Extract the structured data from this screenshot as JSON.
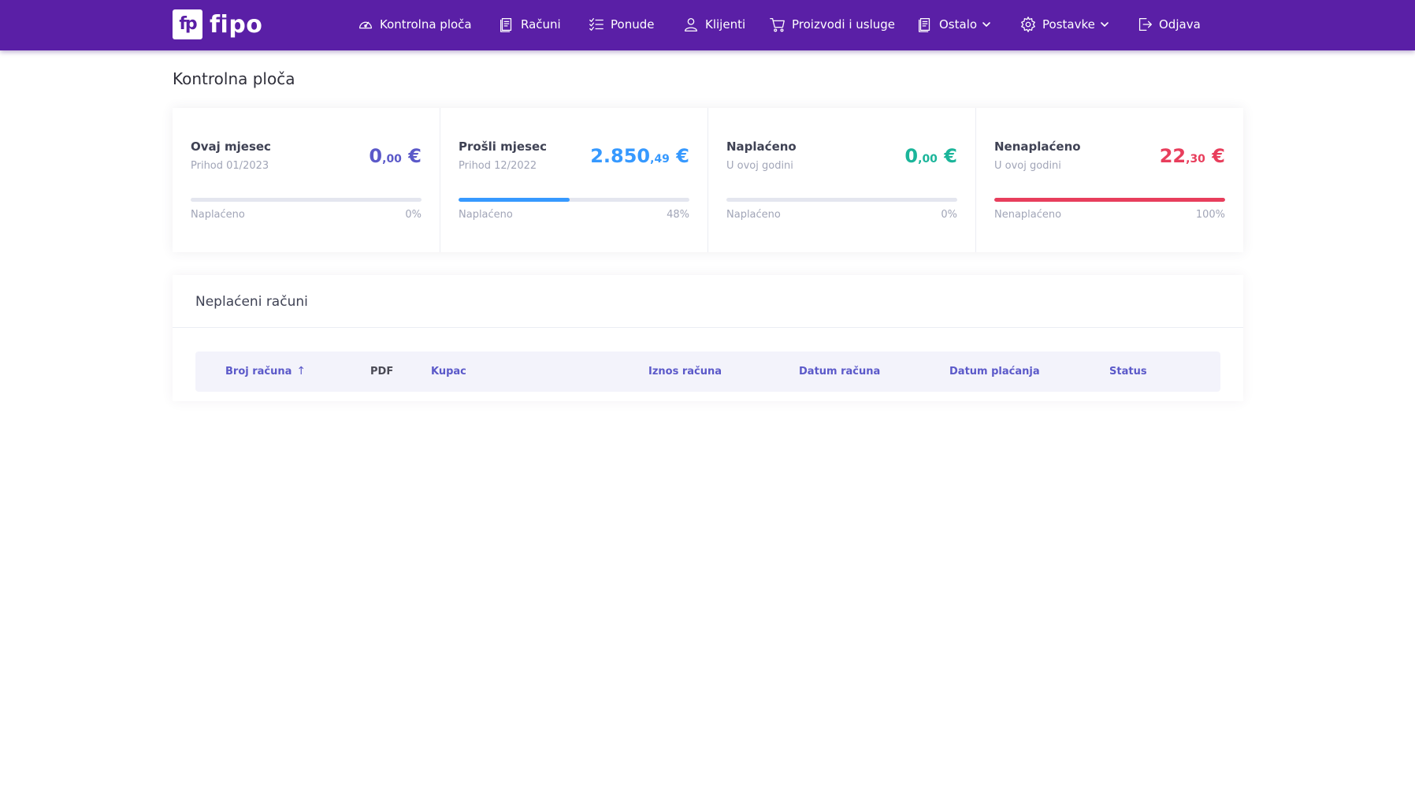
{
  "brand": {
    "logo_mark": "fp",
    "name": "fipo"
  },
  "nav": {
    "dashboard": "Kontrolna ploča",
    "invoices": "Računi",
    "offers": "Ponude",
    "clients": "Klijenti",
    "products": "Proizvodi i usluge",
    "other": "Ostalo",
    "settings": "Postavke",
    "logout": "Odjava"
  },
  "page": {
    "title": "Kontrolna ploča"
  },
  "stats": [
    {
      "label": "Ovaj mjesec",
      "sub": "Prihod 01/2023",
      "amount_int": "0",
      "amount_dec": ",00",
      "currency": "€",
      "color": "#5b59c9",
      "bar_color": "#e4e6ef",
      "progress_percent": 0,
      "progress_label": "Naplaćeno",
      "percent_text": "0%"
    },
    {
      "label": "Prošli mjesec",
      "sub": "Prihod 12/2022",
      "amount_int": "2.850",
      "amount_dec": ",49",
      "currency": "€",
      "color": "#3699ff",
      "bar_color": "#3699ff",
      "progress_percent": 48,
      "progress_label": "Naplaćeno",
      "percent_text": "48%"
    },
    {
      "label": "Naplaćeno",
      "sub": "U ovoj godini",
      "amount_int": "0",
      "amount_dec": ",00",
      "currency": "€",
      "color": "#1bb59a",
      "bar_color": "#1bb59a",
      "progress_percent": 0,
      "progress_label": "Naplaćeno",
      "percent_text": "0%"
    },
    {
      "label": "Nenaplaćeno",
      "sub": "U ovoj godini",
      "amount_int": "22",
      "amount_dec": ",30",
      "currency": "€",
      "color": "#e83e5c",
      "bar_color": "#e83e5c",
      "progress_percent": 100,
      "progress_label": "Nenaplaćeno",
      "percent_text": "100%"
    }
  ],
  "unpaid": {
    "title": "Neplaćeni računi",
    "columns": {
      "number": "Broj računa",
      "pdf": "PDF",
      "customer": "Kupac",
      "amount": "Iznos računa",
      "date": "Datum računa",
      "due": "Datum plaćanja",
      "status": "Status"
    },
    "sort_icon": "arrow-up-icon"
  }
}
